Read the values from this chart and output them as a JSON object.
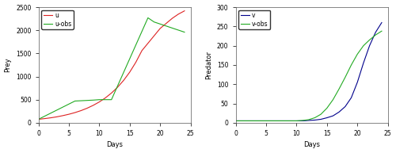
{
  "left": {
    "xlabel": "Days",
    "ylabel": "Prey",
    "xlim": [
      0,
      25
    ],
    "ylim": [
      0,
      2500
    ],
    "yticks": [
      0,
      500,
      1000,
      1500,
      2000,
      2500
    ],
    "xticks": [
      0,
      5,
      10,
      15,
      20,
      25
    ],
    "u_x": [
      0,
      1,
      2,
      3,
      4,
      5,
      6,
      7,
      8,
      9,
      10,
      11,
      12,
      13,
      14,
      15,
      16,
      17,
      18,
      19,
      20,
      21,
      22,
      23,
      24
    ],
    "u_y": [
      75,
      90,
      107,
      128,
      154,
      184,
      220,
      263,
      315,
      377,
      450,
      538,
      643,
      768,
      917,
      1095,
      1307,
      1560,
      1720,
      1880,
      2040,
      2150,
      2260,
      2350,
      2420
    ],
    "u_obs_x": [
      0,
      6,
      9,
      10,
      12,
      18,
      19,
      24
    ],
    "u_obs_y": [
      75,
      470,
      490,
      500,
      500,
      2270,
      2180,
      1960
    ],
    "u_color": "#dd2222",
    "u_obs_color": "#22aa22",
    "legend_labels": [
      "u",
      "u-obs"
    ]
  },
  "right": {
    "xlabel": "Days",
    "ylabel": "Predator",
    "xlim": [
      0,
      25
    ],
    "ylim": [
      0,
      300
    ],
    "yticks": [
      0,
      50,
      100,
      150,
      200,
      250,
      300
    ],
    "xticks": [
      0,
      5,
      10,
      15,
      20,
      25
    ],
    "v_x": [
      0,
      1,
      2,
      3,
      4,
      5,
      6,
      7,
      8,
      9,
      10,
      11,
      12,
      13,
      14,
      15,
      16,
      17,
      18,
      19,
      20,
      21,
      22,
      23,
      24
    ],
    "v_y": [
      5,
      5,
      5,
      5,
      5,
      5,
      5,
      5,
      5,
      5,
      5,
      5,
      6,
      7,
      9,
      13,
      18,
      28,
      42,
      65,
      105,
      155,
      200,
      235,
      260
    ],
    "v_obs_x": [
      0,
      1,
      2,
      3,
      4,
      5,
      6,
      7,
      8,
      9,
      10,
      11,
      12,
      13,
      14,
      15,
      16,
      17,
      18,
      19,
      20,
      21,
      22,
      23,
      24
    ],
    "v_obs_y": [
      5,
      5,
      5,
      5,
      5,
      5,
      5,
      5,
      5,
      5,
      5,
      6,
      8,
      13,
      22,
      38,
      60,
      88,
      118,
      150,
      178,
      200,
      215,
      228,
      238
    ],
    "v_color": "#00008B",
    "v_obs_color": "#22aa22",
    "legend_labels": [
      "v",
      "v-obs"
    ]
  },
  "bg_color": "#ffffff",
  "fig_width": 5.0,
  "fig_height": 1.93,
  "dpi": 100
}
